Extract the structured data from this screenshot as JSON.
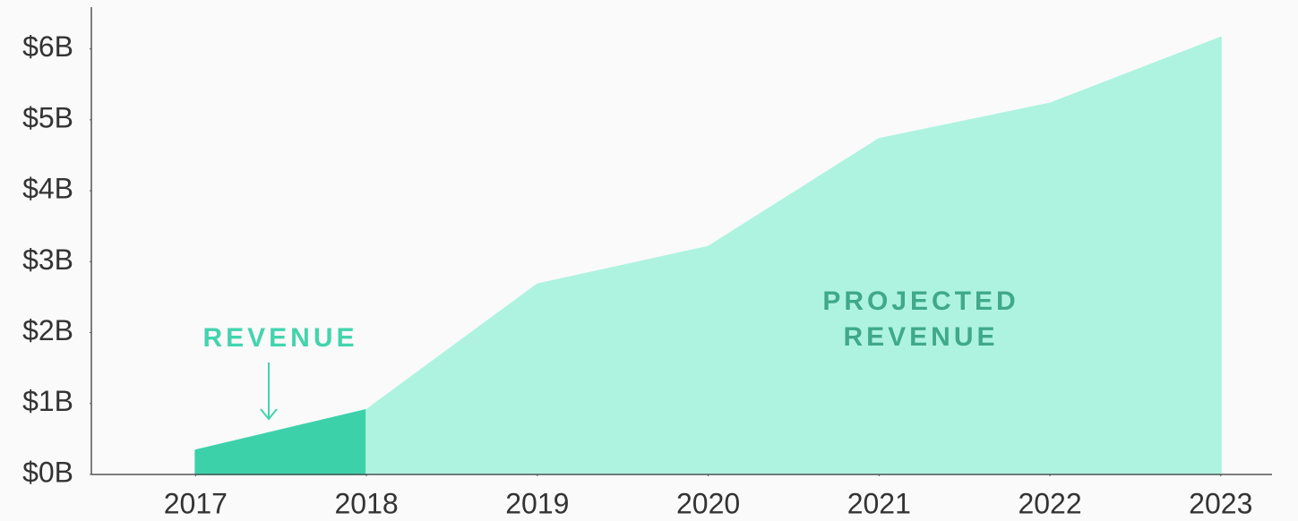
{
  "chart_data": {
    "type": "area",
    "x": [
      2017,
      2018,
      2019,
      2020,
      2021,
      2022,
      2023
    ],
    "series": [
      {
        "name": "REVENUE",
        "color": "#3dd1aa",
        "label_color": "#44d4ad",
        "x": [
          2017,
          2018
        ],
        "values": [
          0.34,
          0.91
        ]
      },
      {
        "name": "PROJECTED REVENUE",
        "color": "#aef3e0",
        "label_color": "#3fa98a",
        "x": [
          2018,
          2019,
          2020,
          2021,
          2022,
          2023
        ],
        "values": [
          0.91,
          2.68,
          3.21,
          4.73,
          5.23,
          6.16
        ]
      }
    ],
    "xlim": [
      2016.39,
      2023.3
    ],
    "xticks": [
      2017,
      2018,
      2019,
      2020,
      2021,
      2022,
      2023
    ],
    "ylim": [
      0,
      6.5
    ],
    "yticks": [
      {
        "value": 0,
        "label": "$0B"
      },
      {
        "value": 1,
        "label": "$1B"
      },
      {
        "value": 2,
        "label": "$2B"
      },
      {
        "value": 3,
        "label": "$3B"
      },
      {
        "value": 4,
        "label": "$4B"
      },
      {
        "value": 5,
        "label": "$5B"
      },
      {
        "value": 6,
        "label": "$6B"
      }
    ]
  }
}
